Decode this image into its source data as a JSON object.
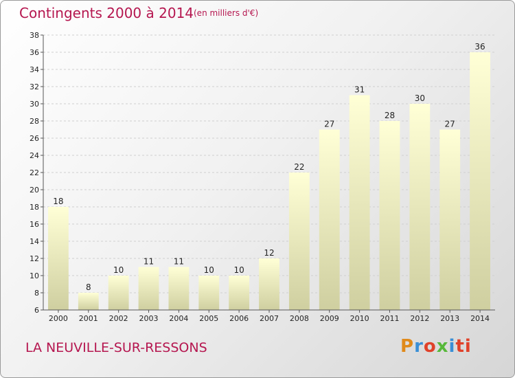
{
  "chart_data": {
    "type": "bar",
    "title": "Contingents 2000 à 2014",
    "subtitle": "(en milliers d'€)",
    "categories": [
      "2000",
      "2001",
      "2002",
      "2003",
      "2004",
      "2005",
      "2006",
      "2007",
      "2008",
      "2009",
      "2010",
      "2011",
      "2012",
      "2013",
      "2014"
    ],
    "values": [
      18,
      8,
      10,
      11,
      11,
      10,
      10,
      12,
      22,
      27,
      31,
      28,
      30,
      27,
      36
    ],
    "ylim": [
      6,
      38
    ],
    "yticks": [
      6,
      8,
      10,
      12,
      14,
      16,
      18,
      20,
      22,
      24,
      26,
      28,
      30,
      32,
      34,
      36,
      38
    ],
    "grid": true,
    "bar_color_top": "#ffffd6",
    "bar_color_bottom": "#cfcfa0"
  },
  "footer": {
    "town": "LA NEUVILLE-SUR-RESSONS",
    "logo": "Proxiti"
  },
  "colors": {
    "accent": "#b5164f"
  }
}
